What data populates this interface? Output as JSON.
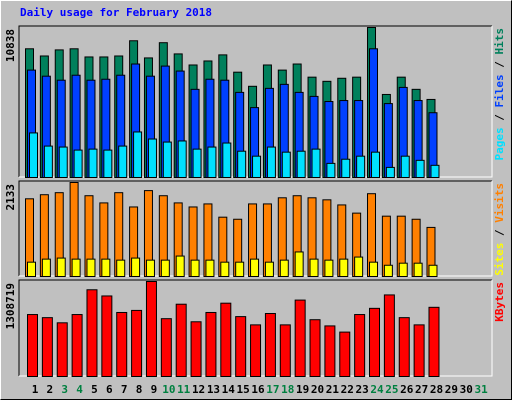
{
  "title": "Daily usage for February 2018",
  "legend_separator": " / ",
  "chart_data": [
    {
      "type": "bar",
      "ylim": [
        0,
        10838
      ],
      "yticks": [
        10838
      ],
      "series": [
        {
          "name": "Pages",
          "color": "#00e0ff",
          "values": [
            3220,
            2270,
            2200,
            1980,
            2050,
            1980,
            2270,
            3290,
            2780,
            2560,
            2640,
            2050,
            2200,
            2490,
            1900,
            1540,
            2200,
            1830,
            1900,
            2050,
            1020,
            1320,
            1540,
            1830,
            730,
            1540,
            1240,
            880,
            null,
            null,
            null
          ]
        },
        {
          "name": "Files",
          "color": "#0040ff",
          "values": [
            7760,
            7320,
            7030,
            7390,
            7030,
            7100,
            7390,
            8200,
            7320,
            8050,
            7690,
            6370,
            7100,
            7030,
            6150,
            5050,
            6440,
            6730,
            6150,
            5860,
            5490,
            5560,
            5560,
            9300,
            5340,
            6510,
            5560,
            4680,
            null,
            null,
            null
          ]
        },
        {
          "name": "Hits",
          "color": "#00805c",
          "values": [
            9300,
            8780,
            9220,
            9300,
            8710,
            8710,
            8780,
            9880,
            8640,
            9740,
            8930,
            8130,
            8420,
            8860,
            7610,
            6590,
            8130,
            7760,
            8200,
            7250,
            6950,
            7170,
            7250,
            10838,
            6000,
            7250,
            6370,
            5640,
            null,
            null,
            null
          ]
        }
      ]
    },
    {
      "type": "bar",
      "ylim": [
        0,
        2133
      ],
      "yticks": [
        2133
      ],
      "series": [
        {
          "name": "Sites",
          "color": "#ffff00",
          "values": [
            325,
            394,
            418,
            394,
            394,
            394,
            371,
            418,
            371,
            371,
            464,
            371,
            371,
            325,
            325,
            394,
            325,
            371,
            557,
            394,
            371,
            394,
            441,
            325,
            255,
            302,
            302,
            255,
            null,
            null,
            null
          ]
        },
        {
          "name": "Visits",
          "color": "#ff8000",
          "values": [
            1763,
            1856,
            1902,
            2133,
            1833,
            1670,
            1902,
            1578,
            1949,
            1833,
            1670,
            1578,
            1647,
            1346,
            1299,
            1647,
            1647,
            1786,
            1833,
            1786,
            1740,
            1624,
            1438,
            1879,
            1369,
            1369,
            1299,
            1114,
            null,
            null,
            null
          ]
        }
      ]
    },
    {
      "type": "bar",
      "ylim": [
        0,
        1308719
      ],
      "yticks": [
        1308719
      ],
      "categories": [
        "1",
        "2",
        "3",
        "4",
        "5",
        "6",
        "7",
        "8",
        "9",
        "10",
        "11",
        "12",
        "13",
        "14",
        "15",
        "16",
        "17",
        "18",
        "19",
        "20",
        "21",
        "22",
        "23",
        "24",
        "25",
        "26",
        "27",
        "28",
        "29",
        "30",
        "31"
      ],
      "category_colors": [
        "#000000",
        "#000000",
        "#008040",
        "#008040",
        "#000000",
        "#000000",
        "#000000",
        "#000000",
        "#000000",
        "#008040",
        "#008040",
        "#000000",
        "#000000",
        "#000000",
        "#000000",
        "#000000",
        "#008040",
        "#008040",
        "#000000",
        "#000000",
        "#000000",
        "#000000",
        "#000000",
        "#008040",
        "#008040",
        "#000000",
        "#000000",
        "#000000",
        "#000000",
        "#000000",
        "#008040"
      ],
      "series": [
        {
          "name": "KBytes",
          "color": "#ff0000",
          "values": [
            853500,
            810800,
            739700,
            853500,
            1194900,
            1109600,
            882000,
            910400,
            1308719,
            796600,
            995800,
            753900,
            882000,
            1010000,
            825100,
            711300,
            867700,
            711300,
            1052700,
            782400,
            697000,
            611700,
            853500,
            938900,
            1123800,
            810800,
            711300,
            953100,
            null,
            null,
            null
          ]
        }
      ]
    }
  ]
}
